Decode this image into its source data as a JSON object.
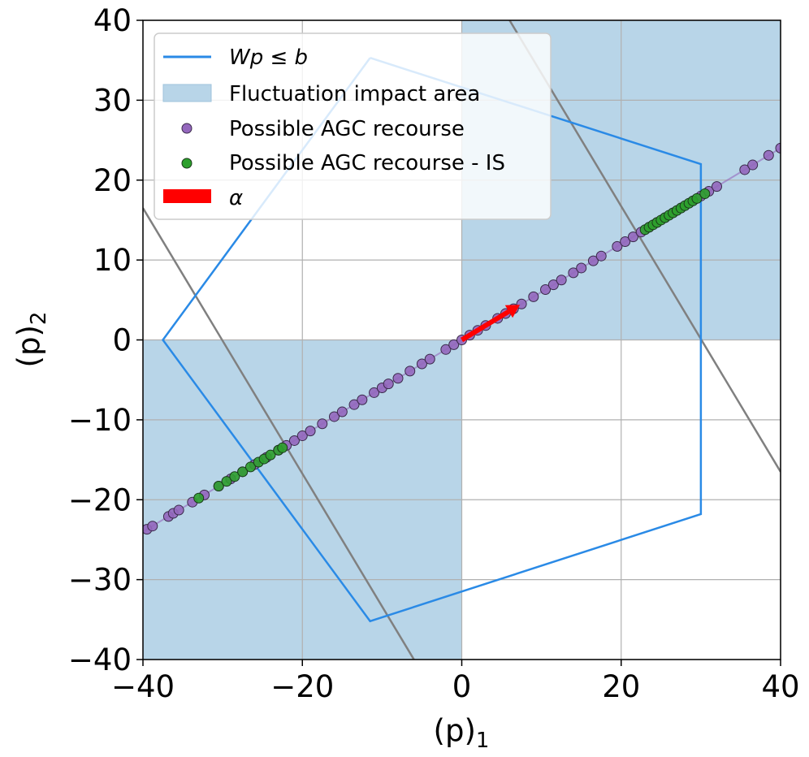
{
  "chart_data": {
    "type": "scatter",
    "xlabel": "(p)1",
    "ylabel": "(p)2",
    "xlim": [
      -40,
      40
    ],
    "ylim": [
      -40,
      40
    ],
    "xticks": [
      -40,
      -20,
      0,
      20,
      40
    ],
    "yticks": [
      -40,
      -30,
      -20,
      -10,
      0,
      10,
      20,
      30,
      40
    ],
    "grid": true,
    "legend_position": "upper-left",
    "legend": [
      {
        "label": "Wp ≤ b",
        "kind": "line",
        "color": "#2a8ae6"
      },
      {
        "label": "Fluctuation impact area",
        "kind": "patch",
        "color": "#b8d5e8"
      },
      {
        "label": "Possible AGC recourse",
        "kind": "marker",
        "color": "#9467bd"
      },
      {
        "label": "Possible AGC recourse - IS",
        "kind": "marker",
        "color": "#2ca02c"
      },
      {
        "label": "α",
        "kind": "arrow",
        "color": "#ff0000"
      }
    ],
    "fluctuation_regions": [
      {
        "x": [
          0,
          40
        ],
        "y": [
          0,
          40
        ]
      },
      {
        "x": [
          -40,
          0
        ],
        "y": [
          -40,
          0
        ]
      }
    ],
    "polygon": {
      "name": "Wp ≤ b",
      "color": "#2a8ae6",
      "points": [
        [
          -11.5,
          35.3
        ],
        [
          30.0,
          22.0
        ],
        [
          30.0,
          -21.8
        ],
        [
          -11.5,
          -35.2
        ],
        [
          -37.5,
          0
        ],
        [
          -11.5,
          35.3
        ]
      ]
    },
    "reference_lines": [
      {
        "color": "#808080",
        "points": [
          [
            -40,
            16.5
          ],
          [
            -6,
            -40
          ]
        ]
      },
      {
        "color": "#808080",
        "points": [
          [
            6,
            40
          ],
          [
            40,
            -16.5
          ]
        ]
      }
    ],
    "purple_line": {
      "slope": 0.6,
      "x_min": -40,
      "x_max": 40
    },
    "series": [
      {
        "name": "Possible AGC recourse",
        "color": "#9467bd",
        "x": [
          -39.5,
          -38.8,
          -36.8,
          -36.2,
          -35.5,
          -33.8,
          -32.3,
          -30.5,
          -29.0,
          -27.5,
          -26.0,
          -24.5,
          -23.0,
          -22.0,
          -21.0,
          -20.0,
          -19.0,
          -17.5,
          -16.0,
          -15.0,
          -13.5,
          -12.5,
          -11.0,
          -10.0,
          -9.2,
          -8.0,
          -6.5,
          -5.0,
          -4.0,
          -2.0,
          -1.0,
          0.0,
          1.0,
          2.0,
          3.0,
          4.5,
          5.5,
          6.5,
          7.5,
          9.0,
          10.5,
          11.5,
          12.5,
          14.0,
          15.0,
          16.5,
          17.5,
          19.5,
          20.5,
          21.5,
          22.5,
          23.5,
          24.5,
          25.5,
          26.5,
          27.5,
          29.0,
          30.0,
          31.0,
          32.0,
          35.5,
          36.5,
          38.5,
          40.0
        ],
        "y": [
          -23.7,
          -23.3,
          -22.1,
          -21.7,
          -21.3,
          -20.3,
          -19.4,
          -18.3,
          -17.4,
          -16.5,
          -15.6,
          -14.7,
          -13.8,
          -13.2,
          -12.6,
          -12.0,
          -11.4,
          -10.5,
          -9.6,
          -9.0,
          -8.1,
          -7.5,
          -6.6,
          -6.0,
          -5.5,
          -4.8,
          -3.9,
          -3.0,
          -2.4,
          -1.2,
          -0.6,
          0.0,
          0.6,
          1.2,
          1.8,
          2.7,
          3.3,
          3.9,
          4.5,
          5.4,
          6.3,
          6.9,
          7.5,
          8.4,
          9.0,
          9.9,
          10.5,
          11.7,
          12.3,
          12.9,
          13.5,
          14.1,
          14.7,
          15.3,
          15.9,
          16.5,
          17.4,
          18.0,
          18.6,
          19.2,
          21.3,
          21.9,
          23.1,
          24.0
        ]
      },
      {
        "name": "Possible AGC recourse - IS",
        "color": "#2ca02c",
        "x": [
          -33.0,
          -30.5,
          -29.5,
          -28.5,
          -27.5,
          -26.5,
          -25.5,
          -24.8,
          -24.0,
          -23.0,
          -22.5,
          23.0,
          23.5,
          24.0,
          24.5,
          25.0,
          25.5,
          26.0,
          26.5,
          27.0,
          27.5,
          28.0,
          28.5,
          29.0,
          29.5,
          30.5
        ],
        "y": [
          -19.8,
          -18.3,
          -17.7,
          -17.1,
          -16.5,
          -15.9,
          -15.3,
          -14.9,
          -14.4,
          -13.8,
          -13.5,
          13.8,
          14.1,
          14.4,
          14.7,
          15.0,
          15.3,
          15.6,
          15.9,
          16.2,
          16.5,
          16.8,
          17.1,
          17.4,
          17.7,
          18.3
        ]
      }
    ],
    "arrow": {
      "name": "α",
      "color": "#ff0000",
      "from": [
        0,
        0
      ],
      "to": [
        7.3,
        4.4
      ]
    }
  }
}
